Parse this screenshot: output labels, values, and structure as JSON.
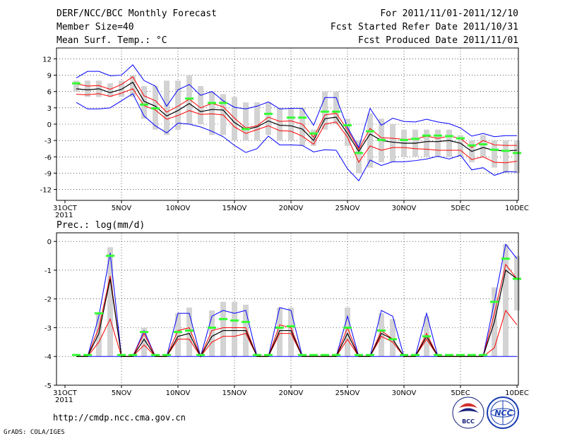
{
  "header": {
    "title": "DERF/NCC/BCC Monthly Forecast",
    "member_size": "Member Size=40",
    "variable": "Mean Surf. Temp.: °C",
    "period": "For 2011/11/01-2011/12/10",
    "started": "Fcst Started Refer Date 2011/10/31",
    "produced": "Fcst Produced Date 2011/11/01"
  },
  "footer": {
    "url": "http://cmdp.ncc.cma.gov.cn",
    "grads": "GrADS: COLA/IGES",
    "logo_bcc_text": "BCC",
    "logo_ncc_text": "NCC"
  },
  "colors": {
    "box": "#d3d3d3",
    "mean": "#000000",
    "spread": "#ff0000",
    "range": "#0000ff",
    "median": "#33ff33",
    "grid": "#000000"
  },
  "chart_data": [
    {
      "type": "line",
      "title": "Mean Surf. Temp.: °C",
      "ylim": [
        -14,
        14
      ],
      "yticks": [
        12,
        9,
        6,
        3,
        0,
        -3,
        -6,
        -9,
        -12
      ],
      "x_ticks": [
        {
          "day": 0,
          "label": "31OCT",
          "sub": "2011"
        },
        {
          "day": 5,
          "label": "5NOV"
        },
        {
          "day": 10,
          "label": "10NOV"
        },
        {
          "day": 15,
          "label": "15NOV"
        },
        {
          "day": 20,
          "label": "20NOV"
        },
        {
          "day": 25,
          "label": "25NOV"
        },
        {
          "day": 30,
          "label": "30NOV"
        },
        {
          "day": 35,
          "label": "5DEC"
        },
        {
          "day": 40,
          "label": "10DEC"
        }
      ],
      "days": [
        1,
        2,
        3,
        4,
        5,
        6,
        7,
        8,
        9,
        10,
        11,
        12,
        13,
        14,
        15,
        16,
        17,
        18,
        19,
        20,
        21,
        22,
        23,
        24,
        25,
        26,
        27,
        28,
        29,
        30,
        31,
        32,
        33,
        34,
        35,
        36,
        37,
        38,
        39,
        40
      ],
      "series": [
        {
          "name": "max",
          "values": [
            8.5,
            9.7,
            9.7,
            8.9,
            9.0,
            10.9,
            8.0,
            7.0,
            3.3,
            6.3,
            7.3,
            5.3,
            6.0,
            4.3,
            3.1,
            2.8,
            3.3,
            4.1,
            2.8,
            2.9,
            2.9,
            -0.2,
            4.9,
            4.9,
            -0.6,
            -4.3,
            2.9,
            -0.2,
            1.1,
            0.5,
            0.4,
            0.9,
            0.4,
            0.1,
            -0.7,
            -2.2,
            -1.7,
            -2.3,
            -2.1,
            -2.1
          ]
        },
        {
          "name": "upper",
          "values": [
            7.4,
            7.0,
            7.1,
            6.4,
            7.3,
            8.7,
            5.2,
            4.3,
            2.2,
            3.3,
            4.6,
            3.0,
            3.8,
            3.2,
            1.1,
            -0.7,
            -0.3,
            1.3,
            0.5,
            0.6,
            0.0,
            -2.4,
            1.7,
            2.0,
            -1.0,
            -4.6,
            -0.8,
            -2.5,
            -2.6,
            -2.8,
            -2.7,
            -2.2,
            -2.6,
            -2.2,
            -2.6,
            -4.3,
            -3.0,
            -3.8,
            -3.9,
            -3.9
          ]
        },
        {
          "name": "mean",
          "values": [
            6.5,
            6.3,
            6.5,
            5.8,
            6.4,
            7.7,
            4.2,
            3.3,
            1.5,
            2.5,
            3.8,
            2.3,
            2.7,
            2.6,
            0.3,
            -1.0,
            -0.5,
            0.6,
            -0.2,
            -0.3,
            -0.9,
            -3.0,
            1.0,
            1.3,
            -1.7,
            -5.0,
            -1.8,
            -3.0,
            -3.3,
            -3.5,
            -3.5,
            -3.2,
            -3.2,
            -3.0,
            -3.5,
            -5.0,
            -4.3,
            -4.8,
            -4.9,
            -4.8
          ]
        },
        {
          "name": "lower",
          "values": [
            5.5,
            5.4,
            5.6,
            5.1,
            5.7,
            6.5,
            3.4,
            2.6,
            0.9,
            1.6,
            2.5,
            1.8,
            1.9,
            1.7,
            -0.5,
            -1.7,
            -1.0,
            -0.3,
            -1.2,
            -1.3,
            -2.2,
            -3.7,
            0.0,
            0.4,
            -2.4,
            -7.0,
            -4.0,
            -4.8,
            -4.3,
            -4.3,
            -4.5,
            -4.6,
            -4.8,
            -4.8,
            -4.8,
            -6.5,
            -6.0,
            -7.0,
            -7.1,
            -6.8
          ]
        },
        {
          "name": "min",
          "values": [
            4.0,
            2.8,
            2.8,
            3.0,
            4.3,
            5.6,
            1.5,
            -0.3,
            -1.6,
            0.2,
            0.0,
            -0.5,
            -1.3,
            -2.3,
            -3.9,
            -5.2,
            -4.5,
            -2.2,
            -3.8,
            -3.8,
            -3.9,
            -5.1,
            -4.7,
            -4.8,
            -8.2,
            -10.4,
            -6.6,
            -7.6,
            -6.9,
            -6.9,
            -6.7,
            -6.4,
            -5.9,
            -6.4,
            -5.7,
            -8.4,
            -8.0,
            -9.4,
            -8.7,
            -8.8
          ]
        },
        {
          "name": "box_top",
          "values": [
            8.0,
            8.0,
            8.0,
            7.5,
            8.0,
            9.0,
            7.0,
            7.0,
            8.0,
            8.0,
            9.0,
            7.0,
            6.0,
            5.5,
            5.0,
            4.0,
            4.0,
            4.0,
            3.0,
            3.0,
            3.0,
            -1.0,
            6.0,
            6.0,
            1.0,
            -3.0,
            2.0,
            1.0,
            0.0,
            -1.0,
            -1.0,
            -1.0,
            -1.0,
            -1.0,
            -2.0,
            -3.0,
            -2.0,
            -3.0,
            -3.0,
            -3.0
          ]
        },
        {
          "name": "box_bottom",
          "values": [
            6.0,
            5.0,
            5.0,
            5.0,
            5.0,
            5.0,
            1.0,
            -1.0,
            -2.0,
            -1.0,
            0.0,
            0.0,
            -2.0,
            -2.0,
            -3.0,
            -3.0,
            -3.0,
            -2.0,
            -3.0,
            -3.0,
            -4.0,
            -4.0,
            -1.0,
            0.0,
            -4.0,
            -9.0,
            -8.0,
            -7.0,
            -7.0,
            -6.0,
            -6.0,
            -6.0,
            -6.0,
            -6.0,
            -6.0,
            -7.0,
            -6.0,
            -8.0,
            -9.0,
            -9.0
          ]
        },
        {
          "name": "median",
          "values": [
            7.5,
            null,
            null,
            null,
            null,
            null,
            3.6,
            2.9,
            null,
            null,
            4.7,
            null,
            3.9,
            3.9,
            null,
            -0.9,
            null,
            1.9,
            null,
            1.2,
            1.2,
            -1.7,
            2.3,
            2.3,
            -0.2,
            -5.3,
            -1.3,
            -2.9,
            null,
            -2.9,
            -2.7,
            -2.1,
            -2.1,
            -2.2,
            -2.6,
            -3.9,
            -3.7,
            -4.7,
            -4.9,
            -5.3
          ]
        }
      ]
    },
    {
      "type": "line",
      "title": "Prec.: log(mm/d)",
      "ylim": [
        -5,
        0.3
      ],
      "yticks": [
        0,
        -1,
        -2,
        -3,
        -4,
        -5
      ],
      "x_ticks": [
        {
          "day": 0,
          "label": "31OCT",
          "sub": "2011"
        },
        {
          "day": 5,
          "label": "5NOV"
        },
        {
          "day": 10,
          "label": "10NOV"
        },
        {
          "day": 15,
          "label": "15NOV"
        },
        {
          "day": 20,
          "label": "20NOV"
        },
        {
          "day": 25,
          "label": "25NOV"
        },
        {
          "day": 30,
          "label": "30NOV"
        },
        {
          "day": 35,
          "label": "5DEC"
        },
        {
          "day": 40,
          "label": "10DEC"
        }
      ],
      "days": [
        1,
        2,
        3,
        4,
        5,
        6,
        7,
        8,
        9,
        10,
        11,
        12,
        13,
        14,
        15,
        16,
        17,
        18,
        19,
        20,
        21,
        22,
        23,
        24,
        25,
        26,
        27,
        28,
        29,
        30,
        31,
        32,
        33,
        34,
        35,
        36,
        37,
        38,
        39,
        40
      ],
      "series": [
        {
          "name": "max",
          "values": [
            -4,
            -4,
            -2.6,
            -0.4,
            -4,
            -4,
            -3.1,
            -4,
            -4,
            -2.5,
            -2.5,
            -4,
            -2.6,
            -2.4,
            -2.5,
            -2.4,
            -4,
            -4,
            -2.3,
            -2.4,
            -4,
            -4,
            -4,
            -4,
            -2.6,
            -4,
            -4,
            -2.4,
            -2.6,
            -4,
            -4,
            -2.5,
            -4,
            -4,
            -4,
            -4,
            -4,
            -2.1,
            -0.1,
            -0.6
          ]
        },
        {
          "name": "upper",
          "values": [
            -4,
            -4,
            -3,
            -1.2,
            -4,
            -4,
            -3.2,
            -4,
            -4,
            -3.1,
            -3,
            -4,
            -3.1,
            -3.0,
            -3.0,
            -3.0,
            -4,
            -4,
            -2.9,
            -3.0,
            -4,
            -4,
            -4,
            -4,
            -3.0,
            -4,
            -4,
            -3.1,
            -3.4,
            -4,
            -4,
            -3.2,
            -4,
            -4,
            -4,
            -4,
            -4,
            -2.5,
            -0.8,
            -1.3
          ]
        },
        {
          "name": "mean",
          "values": [
            -4,
            -4,
            -3.2,
            -1.3,
            -4,
            -4,
            -3.4,
            -4,
            -4,
            -3.3,
            -3.2,
            -4,
            -3.3,
            -3.1,
            -3.1,
            -3.1,
            -4,
            -4,
            -3.1,
            -3.1,
            -4,
            -4,
            -4,
            -4,
            -3.2,
            -4,
            -4,
            -3.2,
            -3.4,
            -4,
            -4,
            -3.3,
            -4,
            -4,
            -4,
            -4,
            -4,
            -2.8,
            -1.0,
            -1.3
          ]
        },
        {
          "name": "lower",
          "values": [
            -4,
            -4,
            -3.5,
            -2.7,
            -4,
            -4,
            -3.6,
            -4,
            -4,
            -3.4,
            -3.4,
            -4,
            -3.5,
            -3.3,
            -3.3,
            -3.2,
            -4,
            -4,
            -3.2,
            -3.2,
            -4,
            -4,
            -4,
            -4,
            -3.4,
            -4,
            -4,
            -3.3,
            -3.5,
            -4,
            -4,
            -3.4,
            -4,
            -4,
            -4,
            -4,
            -4,
            -3.7,
            -2.4,
            -2.9
          ]
        },
        {
          "name": "min",
          "values": [
            -4,
            -4,
            -4,
            -4,
            -4,
            -4,
            -4,
            -4,
            -4,
            -4,
            -4,
            -4,
            -4,
            -4,
            -4,
            -4,
            -4,
            -4,
            -4,
            -4,
            -4,
            -4,
            -4,
            -4,
            -4,
            -4,
            -4,
            -4,
            -4,
            -4,
            -4,
            -4,
            -4,
            -4,
            -4,
            -4,
            -4,
            -4,
            -4,
            -4
          ]
        },
        {
          "name": "box_top",
          "values": [
            null,
            null,
            -2.5,
            -0.2,
            null,
            null,
            -3.0,
            null,
            null,
            -2.5,
            -2.3,
            null,
            -2.4,
            -2.1,
            -2.1,
            -2.2,
            null,
            null,
            -2.3,
            -2.3,
            null,
            null,
            null,
            null,
            -2.3,
            null,
            null,
            -2.5,
            -2.7,
            null,
            null,
            -2.6,
            null,
            null,
            null,
            null,
            null,
            -1.6,
            -0.1,
            -0.5
          ]
        },
        {
          "name": "box_bottom",
          "values": [
            null,
            null,
            -4.0,
            -4.0,
            null,
            null,
            -4.0,
            null,
            null,
            -4.0,
            -4.0,
            null,
            -4.0,
            -4.0,
            -4.0,
            -4.0,
            null,
            null,
            -4.0,
            -4.0,
            null,
            null,
            null,
            null,
            -4.0,
            null,
            null,
            -4.0,
            -4.0,
            null,
            null,
            -4.0,
            null,
            null,
            null,
            null,
            null,
            -4.0,
            -4.0,
            -2.4
          ]
        },
        {
          "name": "median",
          "values": [
            -3.95,
            -3.95,
            -2.5,
            -0.5,
            -3.95,
            -3.95,
            -3.15,
            -3.95,
            -3.95,
            -3.15,
            -3.1,
            -3.95,
            -3.0,
            -2.7,
            -2.75,
            -2.8,
            -3.95,
            -3.95,
            -3.0,
            -2.95,
            -3.95,
            -3.95,
            -3.95,
            -3.95,
            -3.0,
            -3.95,
            -3.95,
            -3.1,
            -3.4,
            -3.95,
            -3.95,
            -3.3,
            -3.95,
            -3.95,
            -3.95,
            -3.95,
            -3.95,
            -2.1,
            -0.6,
            -1.3
          ]
        }
      ]
    }
  ]
}
